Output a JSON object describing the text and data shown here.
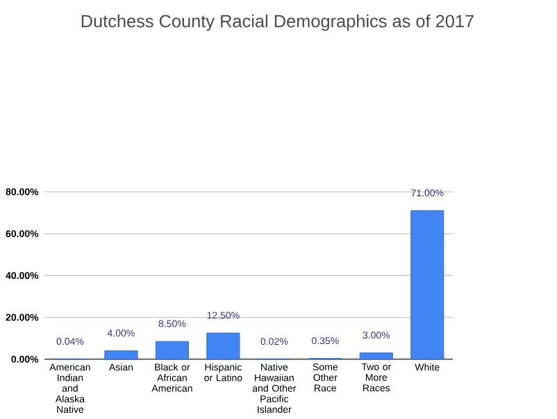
{
  "chart_data": {
    "type": "bar",
    "title": "Dutchess County Racial Demographics as of 2017",
    "categories": [
      "American Indian and Alaska Native",
      "Asian",
      "Black or African American",
      "Hispanic or Latino",
      "Native Hawaiian and Other Pacific Islander",
      "Some Other Race",
      "Two or More Races",
      "White"
    ],
    "values": [
      0.04,
      4.0,
      8.5,
      12.5,
      0.02,
      0.35,
      3.0,
      71.0
    ],
    "value_labels": [
      "0.04%",
      "4.00%",
      "8.50%",
      "12.50%",
      "0.02%",
      "0.35%",
      "3.00%",
      "71.00%"
    ],
    "color": "#4285f4",
    "ylim": [
      0,
      80
    ],
    "yticks": [
      {
        "value": 0,
        "label": "0.00%"
      },
      {
        "value": 20,
        "label": "20.00%"
      },
      {
        "value": 40,
        "label": "40.00%"
      },
      {
        "value": 60,
        "label": "60.00%"
      },
      {
        "value": 80,
        "label": "80.00%"
      }
    ],
    "grid": "y"
  }
}
